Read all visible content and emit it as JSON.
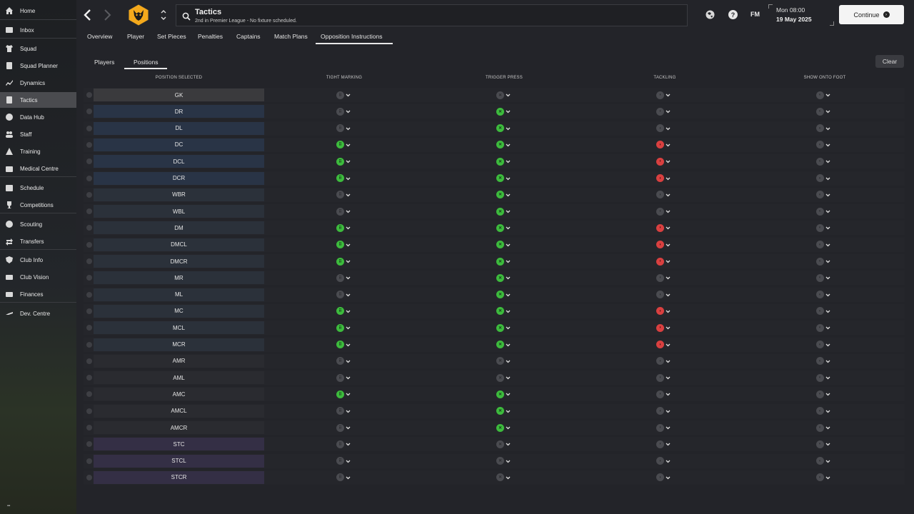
{
  "sidebar": {
    "items": [
      {
        "label": "Home",
        "icon": "home-icon"
      },
      {
        "label": "Inbox",
        "icon": "inbox-icon"
      },
      {
        "label": "Squad",
        "icon": "shirt-icon"
      },
      {
        "label": "Squad Planner",
        "icon": "planner-icon"
      },
      {
        "label": "Dynamics",
        "icon": "dynamics-icon"
      },
      {
        "label": "Tactics",
        "icon": "tactics-icon",
        "active": true
      },
      {
        "label": "Data Hub",
        "icon": "data-hub-icon"
      },
      {
        "label": "Staff",
        "icon": "staff-icon"
      },
      {
        "label": "Training",
        "icon": "training-icon"
      },
      {
        "label": "Medical Centre",
        "icon": "medical-icon"
      },
      {
        "label": "Schedule",
        "icon": "calendar-icon"
      },
      {
        "label": "Competitions",
        "icon": "trophy-icon"
      },
      {
        "label": "Scouting",
        "icon": "scouting-icon"
      },
      {
        "label": "Transfers",
        "icon": "transfers-icon"
      },
      {
        "label": "Club Info",
        "icon": "shield-icon"
      },
      {
        "label": "Club Vision",
        "icon": "vision-icon"
      },
      {
        "label": "Finances",
        "icon": "finances-icon"
      },
      {
        "label": "Dev. Centre",
        "icon": "dev-centre-icon"
      }
    ]
  },
  "header": {
    "title": "Tactics",
    "subtitle": "2nd in Premier League - No fixture scheduled.",
    "fm_logo": "FM",
    "date_line1": "Mon 08:00",
    "date_line2": "19 May 2025",
    "continue_label": "Continue"
  },
  "tabs": [
    {
      "label": "Overview"
    },
    {
      "label": "Player"
    },
    {
      "label": "Set Pieces"
    },
    {
      "label": "Penalties"
    },
    {
      "label": "Captains"
    },
    {
      "label": "Match Plans"
    },
    {
      "label": "Opposition Instructions",
      "active": true
    }
  ],
  "subtabs": [
    {
      "label": "Players"
    },
    {
      "label": "Positions",
      "active": true
    }
  ],
  "clear_label": "Clear",
  "columns": {
    "position": "POSITION SELECTED",
    "tight_marking": "TIGHT MARKING",
    "trigger_press": "TRIGGER PRESS",
    "tackling": "TACKLING",
    "show_onto_foot": "SHOW ONTO FOOT"
  },
  "status_colors": {
    "on_green": "#3dbb3d",
    "harder_red": "#d94040",
    "off_grey": "#4a4b50"
  },
  "rows": [
    {
      "pos": "GK",
      "group": "gk",
      "tm": "off",
      "tp": "off",
      "tk": "off",
      "sf": "off"
    },
    {
      "pos": "DR",
      "group": "def",
      "tm": "off",
      "tp": "on",
      "tk": "off",
      "sf": "off"
    },
    {
      "pos": "DL",
      "group": "def",
      "tm": "off",
      "tp": "on",
      "tk": "off",
      "sf": "off"
    },
    {
      "pos": "DC",
      "group": "def",
      "tm": "on",
      "tp": "on",
      "tk": "red",
      "sf": "off"
    },
    {
      "pos": "DCL",
      "group": "def",
      "tm": "on",
      "tp": "on",
      "tk": "red",
      "sf": "off"
    },
    {
      "pos": "DCR",
      "group": "def",
      "tm": "on",
      "tp": "on",
      "tk": "red",
      "sf": "off"
    },
    {
      "pos": "WBR",
      "group": "mid",
      "tm": "off",
      "tp": "on",
      "tk": "off",
      "sf": "off"
    },
    {
      "pos": "WBL",
      "group": "mid",
      "tm": "off",
      "tp": "on",
      "tk": "off",
      "sf": "off"
    },
    {
      "pos": "DM",
      "group": "mid",
      "tm": "on",
      "tp": "on",
      "tk": "red",
      "sf": "off"
    },
    {
      "pos": "DMCL",
      "group": "mid",
      "tm": "on",
      "tp": "on",
      "tk": "red",
      "sf": "off"
    },
    {
      "pos": "DMCR",
      "group": "mid",
      "tm": "on",
      "tp": "on",
      "tk": "red",
      "sf": "off"
    },
    {
      "pos": "MR",
      "group": "mid",
      "tm": "off",
      "tp": "on",
      "tk": "off",
      "sf": "off"
    },
    {
      "pos": "ML",
      "group": "mid",
      "tm": "off",
      "tp": "on",
      "tk": "off",
      "sf": "off"
    },
    {
      "pos": "MC",
      "group": "mid",
      "tm": "on",
      "tp": "on",
      "tk": "red",
      "sf": "off"
    },
    {
      "pos": "MCL",
      "group": "mid",
      "tm": "on",
      "tp": "on",
      "tk": "red",
      "sf": "off"
    },
    {
      "pos": "MCR",
      "group": "mid",
      "tm": "on",
      "tp": "on",
      "tk": "red",
      "sf": "off"
    },
    {
      "pos": "AMR",
      "group": "amid",
      "tm": "off",
      "tp": "off",
      "tk": "off",
      "sf": "off"
    },
    {
      "pos": "AML",
      "group": "amid",
      "tm": "off",
      "tp": "off",
      "tk": "off",
      "sf": "off"
    },
    {
      "pos": "AMC",
      "group": "amid",
      "tm": "on",
      "tp": "on",
      "tk": "off",
      "sf": "off"
    },
    {
      "pos": "AMCL",
      "group": "amid",
      "tm": "off",
      "tp": "on",
      "tk": "off",
      "sf": "off"
    },
    {
      "pos": "AMCR",
      "group": "amid",
      "tm": "off",
      "tp": "on",
      "tk": "off",
      "sf": "off"
    },
    {
      "pos": "STC",
      "group": "att",
      "tm": "off",
      "tp": "off",
      "tk": "off",
      "sf": "off"
    },
    {
      "pos": "STCL",
      "group": "att",
      "tm": "off",
      "tp": "off",
      "tk": "off",
      "sf": "off"
    },
    {
      "pos": "STCR",
      "group": "att",
      "tm": "off",
      "tp": "off",
      "tk": "off",
      "sf": "off"
    }
  ]
}
